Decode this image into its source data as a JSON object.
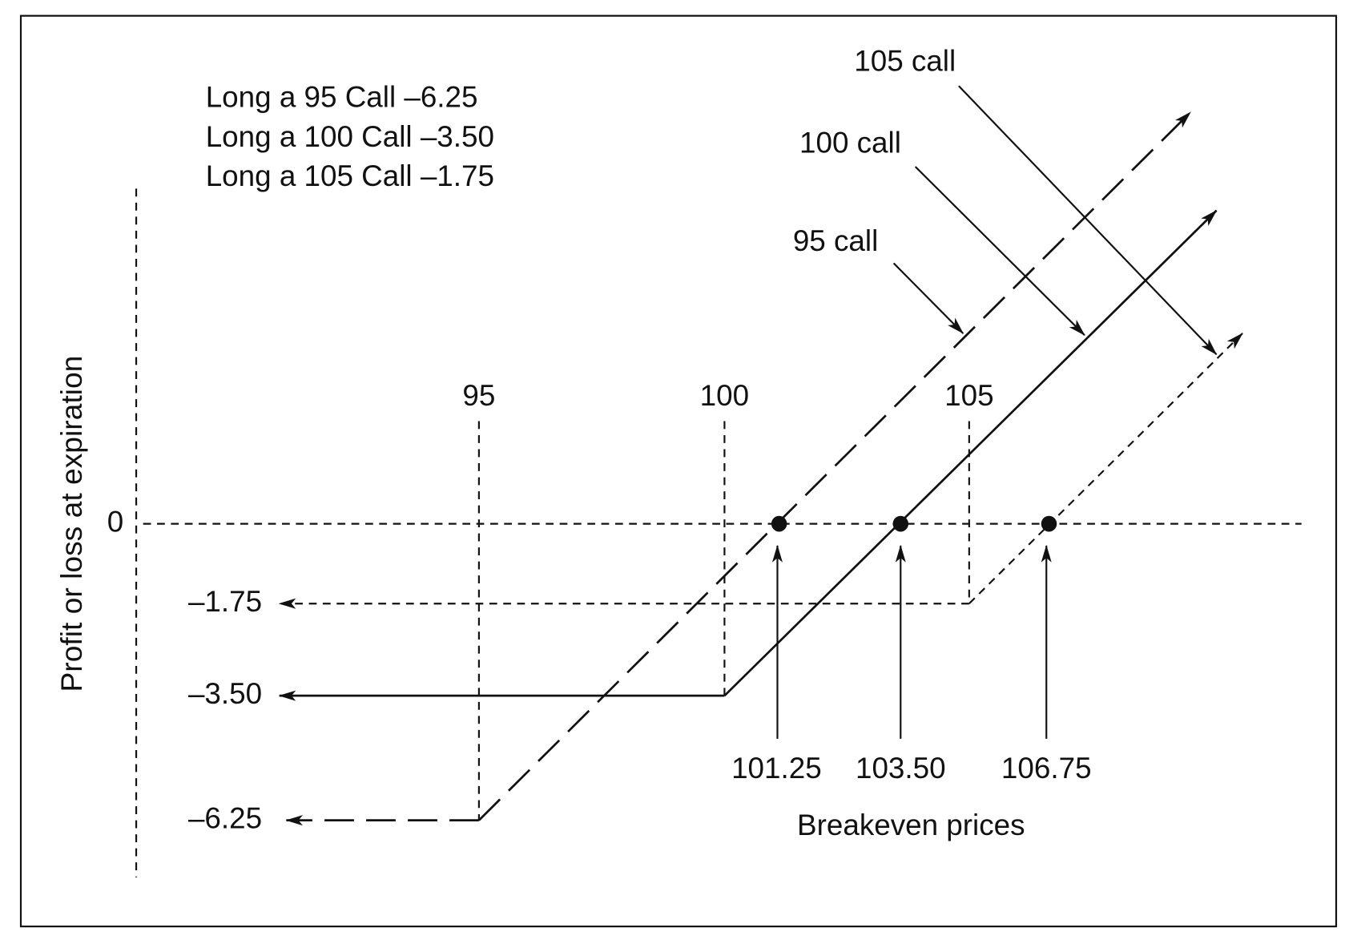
{
  "legend": [
    "Long a 95 Call –6.25",
    "Long a 100 Call –3.50",
    "Long a 105 Call –1.75"
  ],
  "callouts": [
    "95 call",
    "100 call",
    "105 call"
  ],
  "y_axis": {
    "title": "Profit or loss at expiration",
    "labels": [
      "0",
      "–1.75",
      "–3.50",
      "–6.25"
    ]
  },
  "strikes": [
    "95",
    "100",
    "105"
  ],
  "breakevens": {
    "labels": [
      "101.25",
      "103.50",
      "106.75"
    ],
    "title": "Breakeven prices"
  }
}
